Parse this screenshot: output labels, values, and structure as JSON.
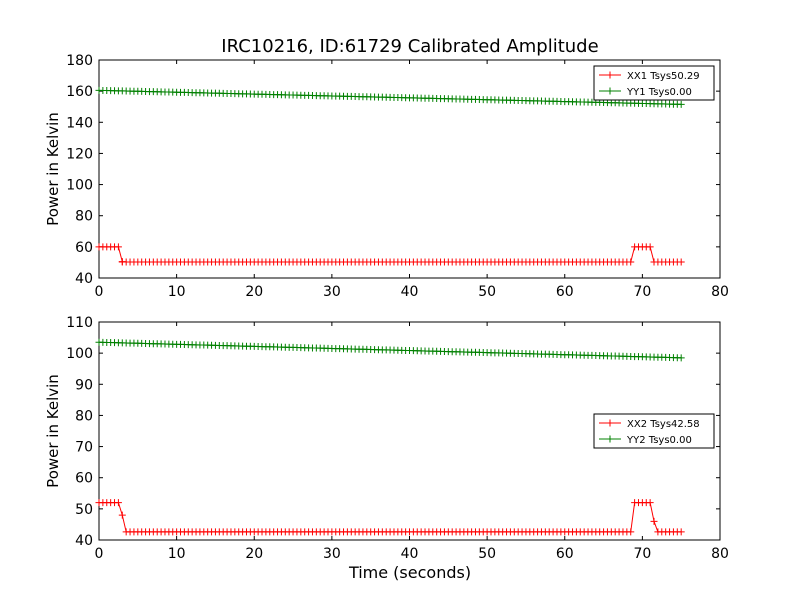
{
  "figure": {
    "title": "IRC10216, ID:61729 Calibrated Amplitude",
    "xlabel": "Time (seconds)",
    "background": "#ffffff"
  },
  "chart_data": [
    {
      "type": "line",
      "title": "IRC10216, ID:61729 Calibrated Amplitude",
      "xlabel": "",
      "ylabel": "Power in Kelvin",
      "xlim": [
        0,
        80
      ],
      "ylim": [
        40,
        180
      ],
      "xticks": [
        "0",
        "10",
        "20",
        "30",
        "40",
        "50",
        "60",
        "70",
        "80"
      ],
      "yticks": [
        "40",
        "60",
        "80",
        "100",
        "120",
        "140",
        "160",
        "180"
      ],
      "grid": false,
      "legend": "top-right",
      "marker": "+",
      "series": [
        {
          "name": "XX1 Tsys50.29",
          "color": "#ff0000",
          "segments": [
            {
              "x_start": 0.0,
              "x_end": 2.5,
              "y_start": 60.0,
              "y_end": 60.0
            },
            {
              "x_start": 3.0,
              "x_end": 3.0,
              "y_start": 50.5,
              "y_end": 50.5
            },
            {
              "x_start": 3.0,
              "x_end": 68.5,
              "y_start": 50.3,
              "y_end": 50.3
            },
            {
              "x_start": 69.0,
              "x_end": 71.0,
              "y_start": 60.0,
              "y_end": 60.0
            },
            {
              "x_start": 71.5,
              "x_end": 75.0,
              "y_start": 50.3,
              "y_end": 50.3
            }
          ]
        },
        {
          "name": "YY1 Tsys0.00",
          "color": "#008000",
          "segments": [
            {
              "x_start": 0.0,
              "x_end": 75.0,
              "y_start": 160.5,
              "y_end": 151.5
            }
          ]
        }
      ]
    },
    {
      "type": "line",
      "title": "",
      "xlabel": "Time (seconds)",
      "ylabel": "Power in Kelvin",
      "xlim": [
        0,
        80
      ],
      "ylim": [
        40,
        110
      ],
      "xticks": [
        "0",
        "10",
        "20",
        "30",
        "40",
        "50",
        "60",
        "70",
        "80"
      ],
      "yticks": [
        "40",
        "50",
        "60",
        "70",
        "80",
        "90",
        "100",
        "110"
      ],
      "grid": false,
      "legend": "center-right",
      "marker": "+",
      "series": [
        {
          "name": "XX2 Tsys42.58",
          "color": "#ff0000",
          "segments": [
            {
              "x_start": 0.0,
              "x_end": 2.5,
              "y_start": 52.0,
              "y_end": 52.0
            },
            {
              "x_start": 3.0,
              "x_end": 3.0,
              "y_start": 48.0,
              "y_end": 48.0
            },
            {
              "x_start": 3.5,
              "x_end": 68.5,
              "y_start": 42.6,
              "y_end": 42.6
            },
            {
              "x_start": 69.0,
              "x_end": 71.0,
              "y_start": 52.0,
              "y_end": 52.0
            },
            {
              "x_start": 71.5,
              "x_end": 71.5,
              "y_start": 46.0,
              "y_end": 46.0
            },
            {
              "x_start": 72.0,
              "x_end": 75.0,
              "y_start": 42.6,
              "y_end": 42.6
            }
          ]
        },
        {
          "name": "YY2 Tsys0.00",
          "color": "#008000",
          "segments": [
            {
              "x_start": 0.0,
              "x_end": 75.0,
              "y_start": 103.5,
              "y_end": 98.5
            }
          ]
        }
      ]
    }
  ]
}
